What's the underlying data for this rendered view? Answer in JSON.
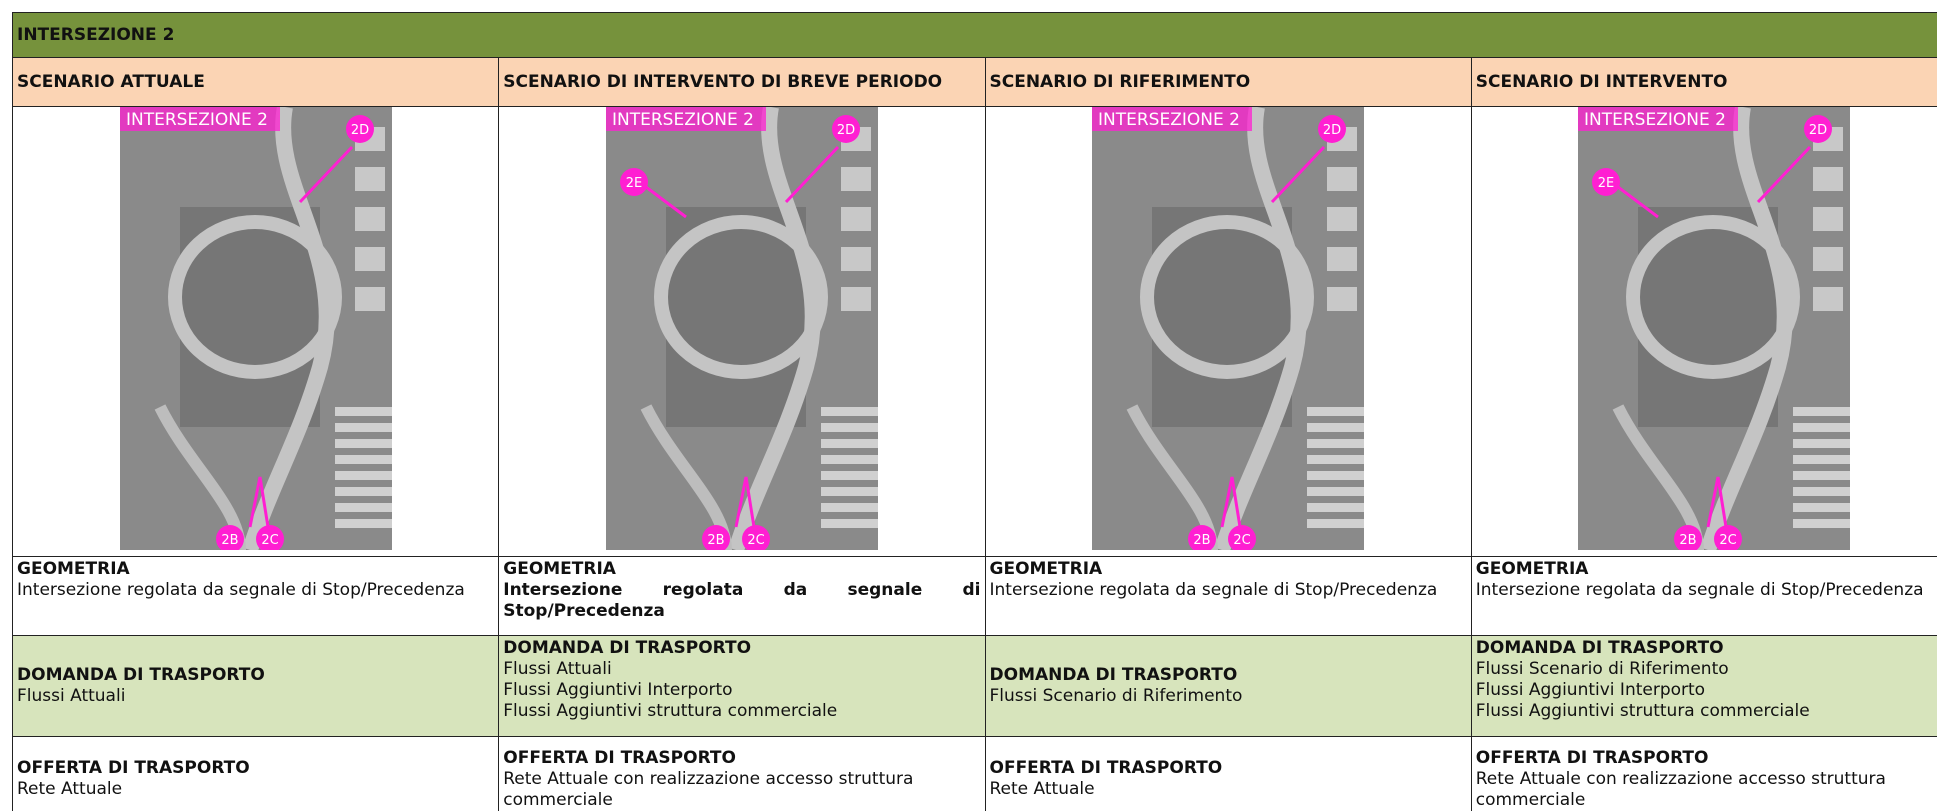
{
  "header": {
    "title": "INTERSEZIONE 2"
  },
  "columns": [
    {
      "scenario": "SCENARIO ATTUALE",
      "image": {
        "title": "INTERSEZIONE 2",
        "markers": [
          "2D",
          "2B",
          "2C"
        ]
      },
      "geometria": {
        "label": "GEOMETRIA",
        "text": "Intersezione regolata da segnale di Stop/Precedenza",
        "bold": false
      },
      "domanda": {
        "label": "DOMANDA DI TRASPORTO",
        "lines": [
          "Flussi Attuali"
        ]
      },
      "offerta": {
        "label": "OFFERTA DI TRASPORTO",
        "lines": [
          "Rete Attuale"
        ]
      }
    },
    {
      "scenario": "SCENARIO DI INTERVENTO DI BREVE PERIODO",
      "image": {
        "title": "INTERSEZIONE 2",
        "markers": [
          "2D",
          "2E",
          "2B",
          "2C"
        ]
      },
      "geometria": {
        "label": "GEOMETRIA",
        "text": "Intersezione regolata da segnale di Stop/Precedenza",
        "bold": true
      },
      "domanda": {
        "label": "DOMANDA DI TRASPORTO",
        "lines": [
          "Flussi Attuali",
          "Flussi Aggiuntivi Interporto",
          "Flussi Aggiuntivi struttura commerciale"
        ]
      },
      "offerta": {
        "label": "OFFERTA DI TRASPORTO",
        "lines": [
          "Rete Attuale con realizzazione accesso struttura commerciale"
        ]
      }
    },
    {
      "scenario": "SCENARIO DI RIFERIMENTO",
      "image": {
        "title": "INTERSEZIONE 2",
        "markers": [
          "2D",
          "2B",
          "2C"
        ]
      },
      "geometria": {
        "label": "GEOMETRIA",
        "text": "Intersezione regolata da segnale di Stop/Precedenza",
        "bold": false
      },
      "domanda": {
        "label": "DOMANDA DI TRASPORTO",
        "lines": [
          "Flussi Scenario di Riferimento"
        ]
      },
      "offerta": {
        "label": "OFFERTA DI TRASPORTO",
        "lines": [
          "Rete Attuale"
        ]
      }
    },
    {
      "scenario": "SCENARIO DI INTERVENTO",
      "image": {
        "title": "INTERSEZIONE 2",
        "markers": [
          "2D",
          "2E",
          "2B",
          "2C"
        ]
      },
      "geometria": {
        "label": "GEOMETRIA",
        "text": "Intersezione regolata da segnale di Stop/Precedenza",
        "bold": false
      },
      "domanda": {
        "label": "DOMANDA DI TRASPORTO",
        "lines": [
          "Flussi Scenario di Riferimento",
          "Flussi Aggiuntivi Interporto",
          "Flussi Aggiuntivi struttura commerciale"
        ]
      },
      "offerta": {
        "label": "OFFERTA DI TRASPORTO",
        "lines": [
          "Rete Attuale con realizzazione accesso struttura commerciale"
        ]
      }
    }
  ]
}
